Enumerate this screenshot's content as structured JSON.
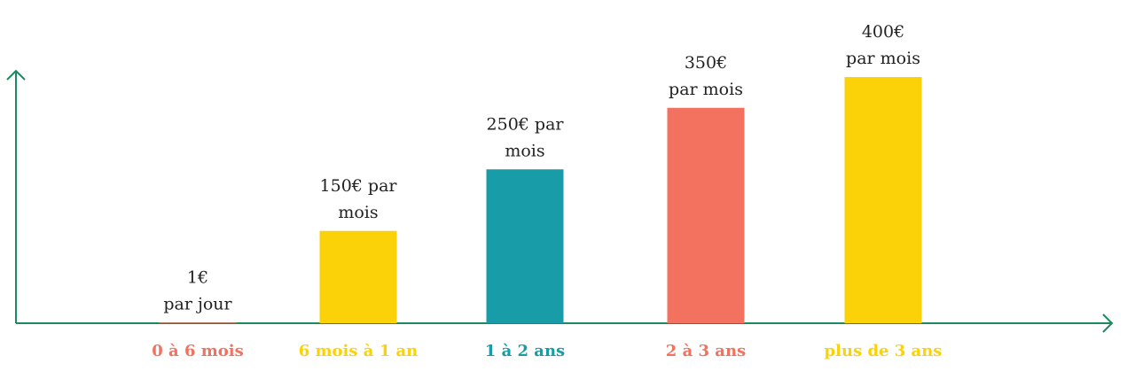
{
  "chart_data": {
    "type": "bar",
    "categories": [
      "0 à 6 mois",
      "6 mois à 1 an",
      "1 à 2 ans",
      "2 à 3 ans",
      "plus de 3 ans"
    ],
    "values": [
      1,
      150,
      250,
      350,
      400
    ],
    "value_labels": [
      [
        "1€",
        "par jour"
      ],
      [
        "150€ par",
        "mois"
      ],
      [
        "250€ par",
        "mois"
      ],
      [
        "350€",
        "par mois"
      ],
      [
        "400€",
        "par mois"
      ]
    ],
    "colors": [
      "#f2725f",
      "#fbd208",
      "#189ca8",
      "#f2725f",
      "#fbd208"
    ]
  }
}
